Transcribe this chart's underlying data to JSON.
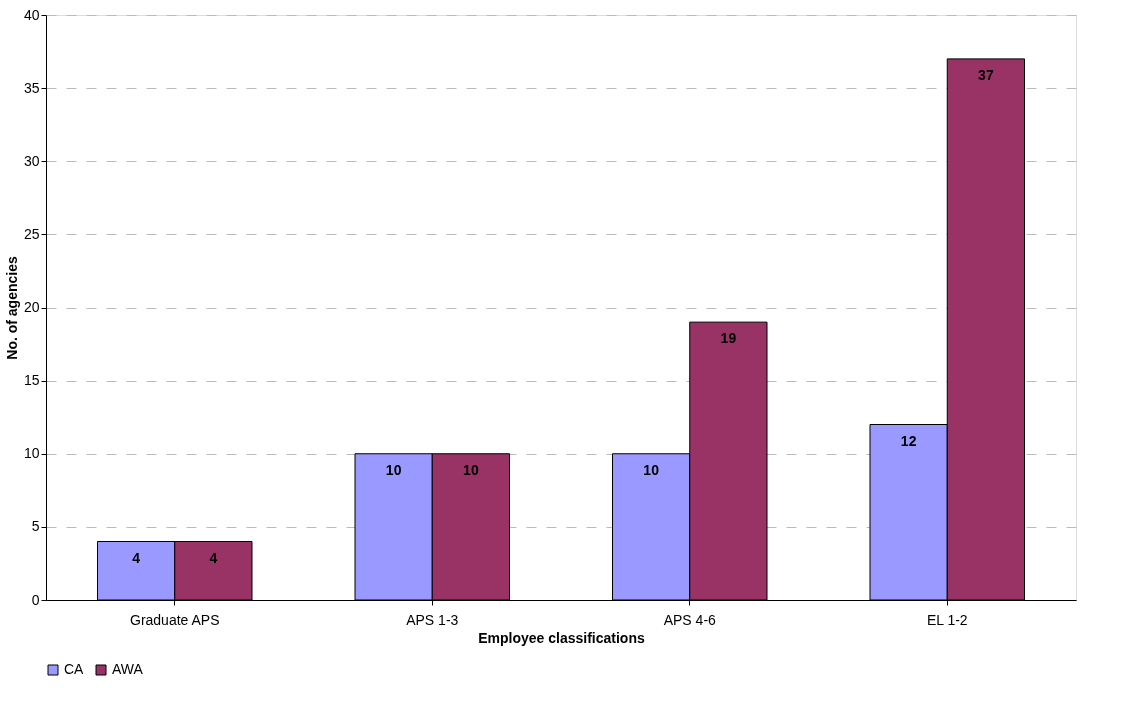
{
  "chart_data": {
    "type": "bar",
    "categories": [
      "Graduate APS",
      "APS 1-3",
      "APS 4-6",
      "EL 1-2"
    ],
    "series": [
      {
        "name": "CA",
        "color": "#9999ff",
        "values": [
          4,
          10,
          10,
          12
        ]
      },
      {
        "name": "AWA",
        "color": "#993366",
        "values": [
          4,
          10,
          19,
          37
        ]
      }
    ],
    "xlabel": "Employee classifications",
    "ylabel": "No. of agencies",
    "ylim": [
      0,
      40
    ],
    "yticks": [
      0,
      5,
      10,
      15,
      20,
      25,
      30,
      35,
      40
    ],
    "grid": "y",
    "legend": "bottom",
    "data_labels": true
  }
}
